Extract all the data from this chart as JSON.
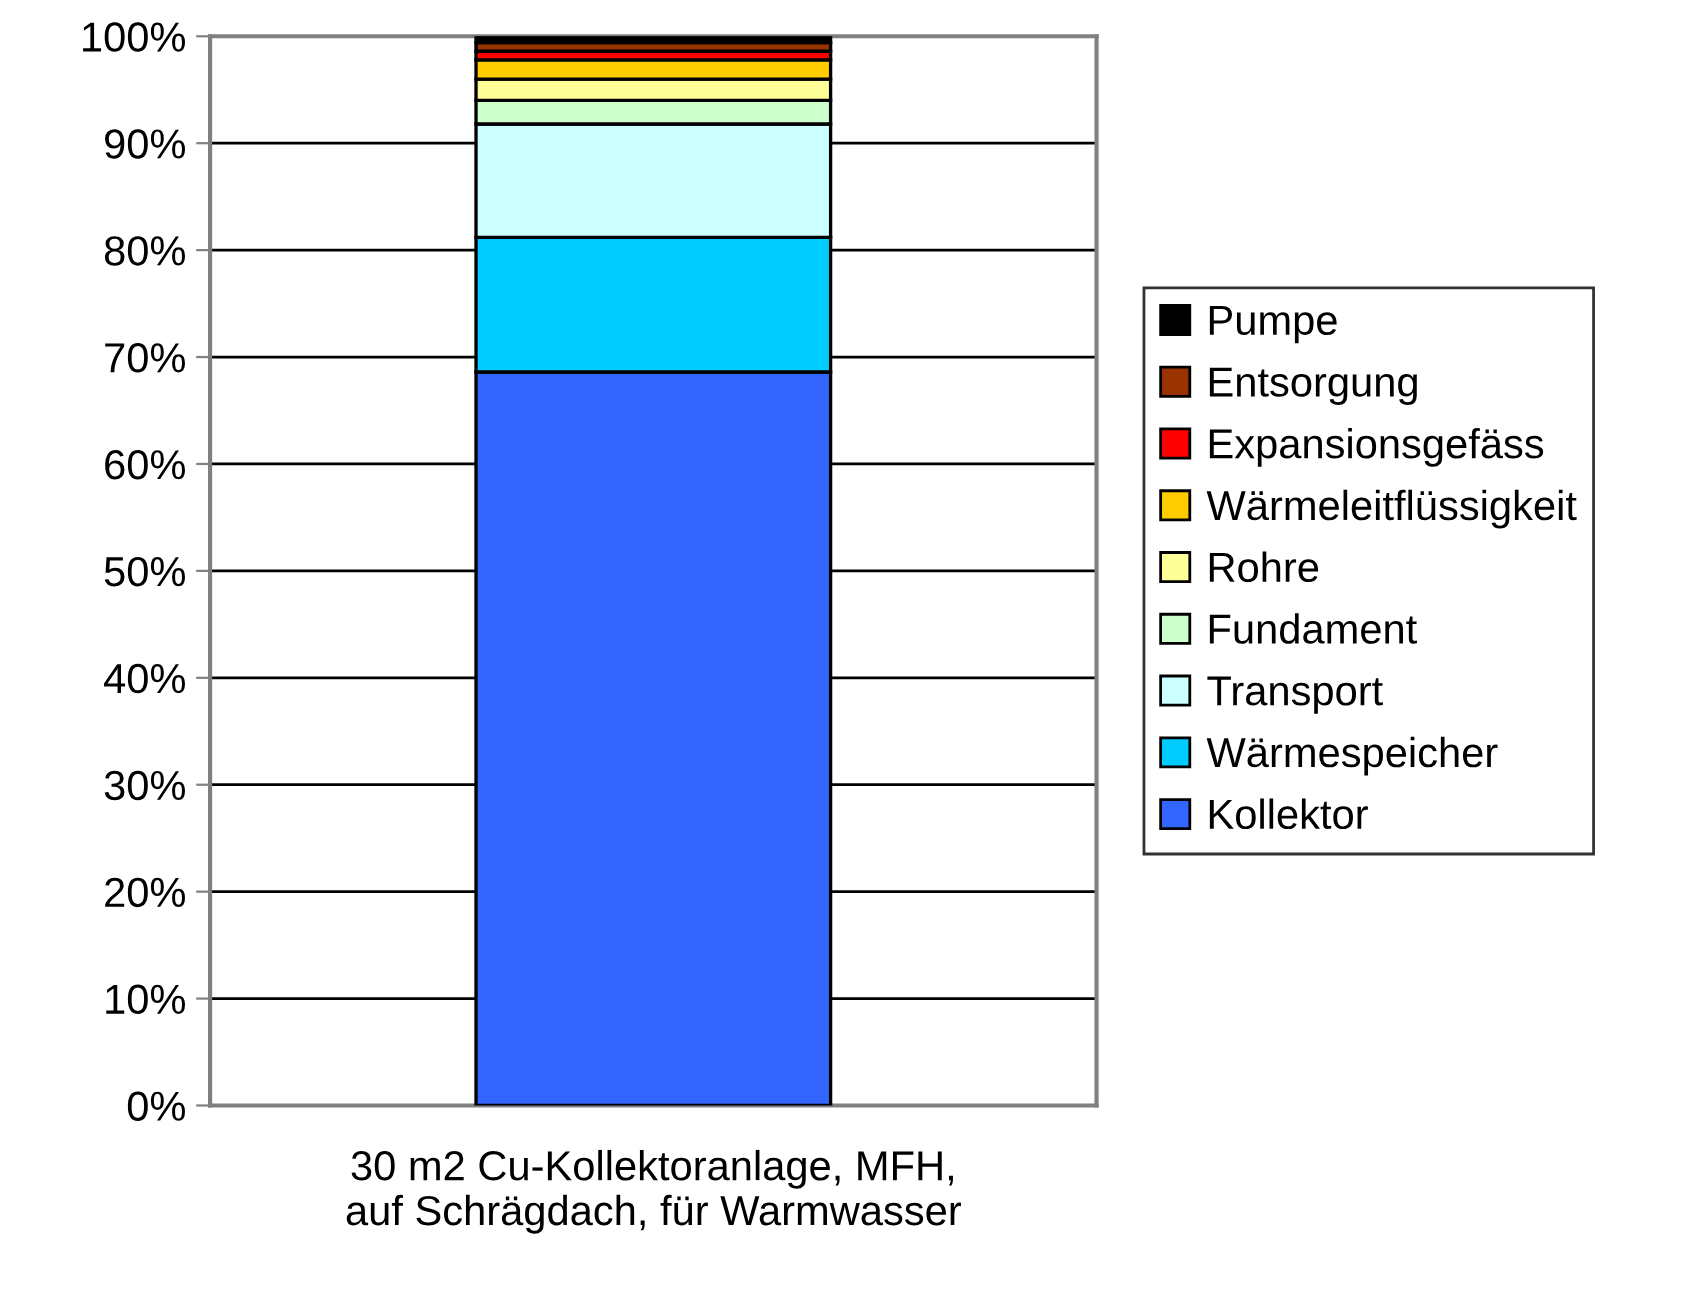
{
  "chart_data": {
    "type": "bar",
    "stacked": true,
    "categories": [
      "30 m2 Cu-Kollektoranlage, MFH,\nauf Schrägdach, für Warmwasser"
    ],
    "series": [
      {
        "name": "Kollektor",
        "color": "#3366ff",
        "values": [
          68.6
        ]
      },
      {
        "name": "Wärmespeicher",
        "color": "#00ccff",
        "values": [
          12.6
        ]
      },
      {
        "name": "Transport",
        "color": "#ccffff",
        "values": [
          10.6
        ]
      },
      {
        "name": "Fundament",
        "color": "#ccffcc",
        "values": [
          2.2
        ]
      },
      {
        "name": "Rohre",
        "color": "#ffff99",
        "values": [
          2.0
        ]
      },
      {
        "name": "Wärmeleitflüssigkeit",
        "color": "#ffcc00",
        "values": [
          1.8
        ]
      },
      {
        "name": "Expansionsgefäss",
        "color": "#ff0000",
        "values": [
          0.8
        ]
      },
      {
        "name": "Entsorgung",
        "color": "#993300",
        "values": [
          0.8
        ]
      },
      {
        "name": "Pumpe",
        "color": "#000000",
        "values": [
          0.6
        ]
      }
    ],
    "ylim": [
      0,
      100
    ],
    "yticks": [
      {
        "value": 0,
        "label": "0%"
      },
      {
        "value": 10,
        "label": "10%"
      },
      {
        "value": 20,
        "label": "20%"
      },
      {
        "value": 30,
        "label": "30%"
      },
      {
        "value": 40,
        "label": "40%"
      },
      {
        "value": 50,
        "label": "50%"
      },
      {
        "value": 60,
        "label": "60%"
      },
      {
        "value": 70,
        "label": "70%"
      },
      {
        "value": 80,
        "label": "80%"
      },
      {
        "value": 90,
        "label": "90%"
      },
      {
        "value": 100,
        "label": "100%"
      }
    ],
    "grid": "y",
    "legend": "right"
  }
}
